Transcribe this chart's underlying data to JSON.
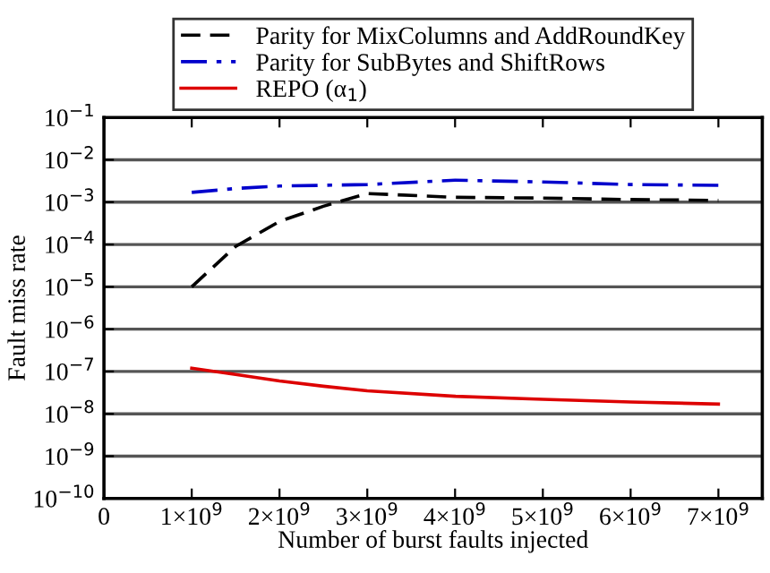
{
  "chart_data": {
    "type": "line",
    "xlabel": "Number of burst faults injected",
    "ylabel": "Fault miss rate",
    "x": [
      1000000000.0,
      1500000000.0,
      2000000000.0,
      2500000000.0,
      3000000000.0,
      4000000000.0,
      5000000000.0,
      6000000000.0,
      7000000000.0
    ],
    "series": [
      {
        "name": "Parity for MixColumns and AddRoundKey",
        "color": "#000000",
        "line_style": "dashed",
        "values": [
          1e-05,
          9e-05,
          0.00035,
          0.0008,
          0.0016,
          0.0013,
          0.00125,
          0.00115,
          0.0011
        ]
      },
      {
        "name": "Parity for SubBytes and ShiftRows",
        "color": "#0000cc",
        "line_style": "dashdot",
        "values": [
          0.0017,
          0.0021,
          0.0024,
          0.0025,
          0.0026,
          0.0033,
          0.003,
          0.0026,
          0.0025
        ]
      },
      {
        "name": "REPO (α$_{1}$)",
        "color": "#dd0000",
        "line_style": "solid",
        "values": [
          1.2e-07,
          8.5e-08,
          6e-08,
          4.5e-08,
          3.5e-08,
          2.6e-08,
          2.2e-08,
          1.9e-08,
          1.7e-08
        ]
      }
    ],
    "log": "y",
    "xlim": [
      0,
      7500000000.0
    ],
    "ylim": [
      1e-10,
      0.1
    ],
    "xticks": [
      0,
      {
        "value": 1000000000.0,
        "label": "1×10$^{9}$"
      },
      {
        "value": 2000000000.0,
        "label": "2×10$^{9}$"
      },
      {
        "value": 3000000000.0,
        "label": "3×10$^{9}$"
      },
      {
        "value": 4000000000.0,
        "label": "4×10$^{9}$"
      },
      {
        "value": 5000000000.0,
        "label": "5×10$^{9}$"
      },
      {
        "value": 6000000000.0,
        "label": "6×10$^{9}$"
      },
      {
        "value": 7000000000.0,
        "label": "7×10$^{9}$"
      }
    ],
    "yticks": [
      {
        "value": 1e-10,
        "label": "10$^{−10}$"
      },
      {
        "value": 1e-09,
        "label": "10$^{−9}$"
      },
      {
        "value": 1e-08,
        "label": "10$^{−8}$"
      },
      {
        "value": 1e-07,
        "label": "10$^{−7}$"
      },
      {
        "value": 1e-06,
        "label": "10$^{−6}$"
      },
      {
        "value": 1e-05,
        "label": "10$^{−5}$"
      },
      {
        "value": 0.0001,
        "label": "10$^{−4}$"
      },
      {
        "value": 0.001,
        "label": "10$^{−3}$"
      },
      {
        "value": 0.01,
        "label": "10$^{−2}$"
      },
      {
        "value": 0.1,
        "label": "10$^{−1}$"
      }
    ],
    "grid": "y",
    "legend": "top"
  }
}
